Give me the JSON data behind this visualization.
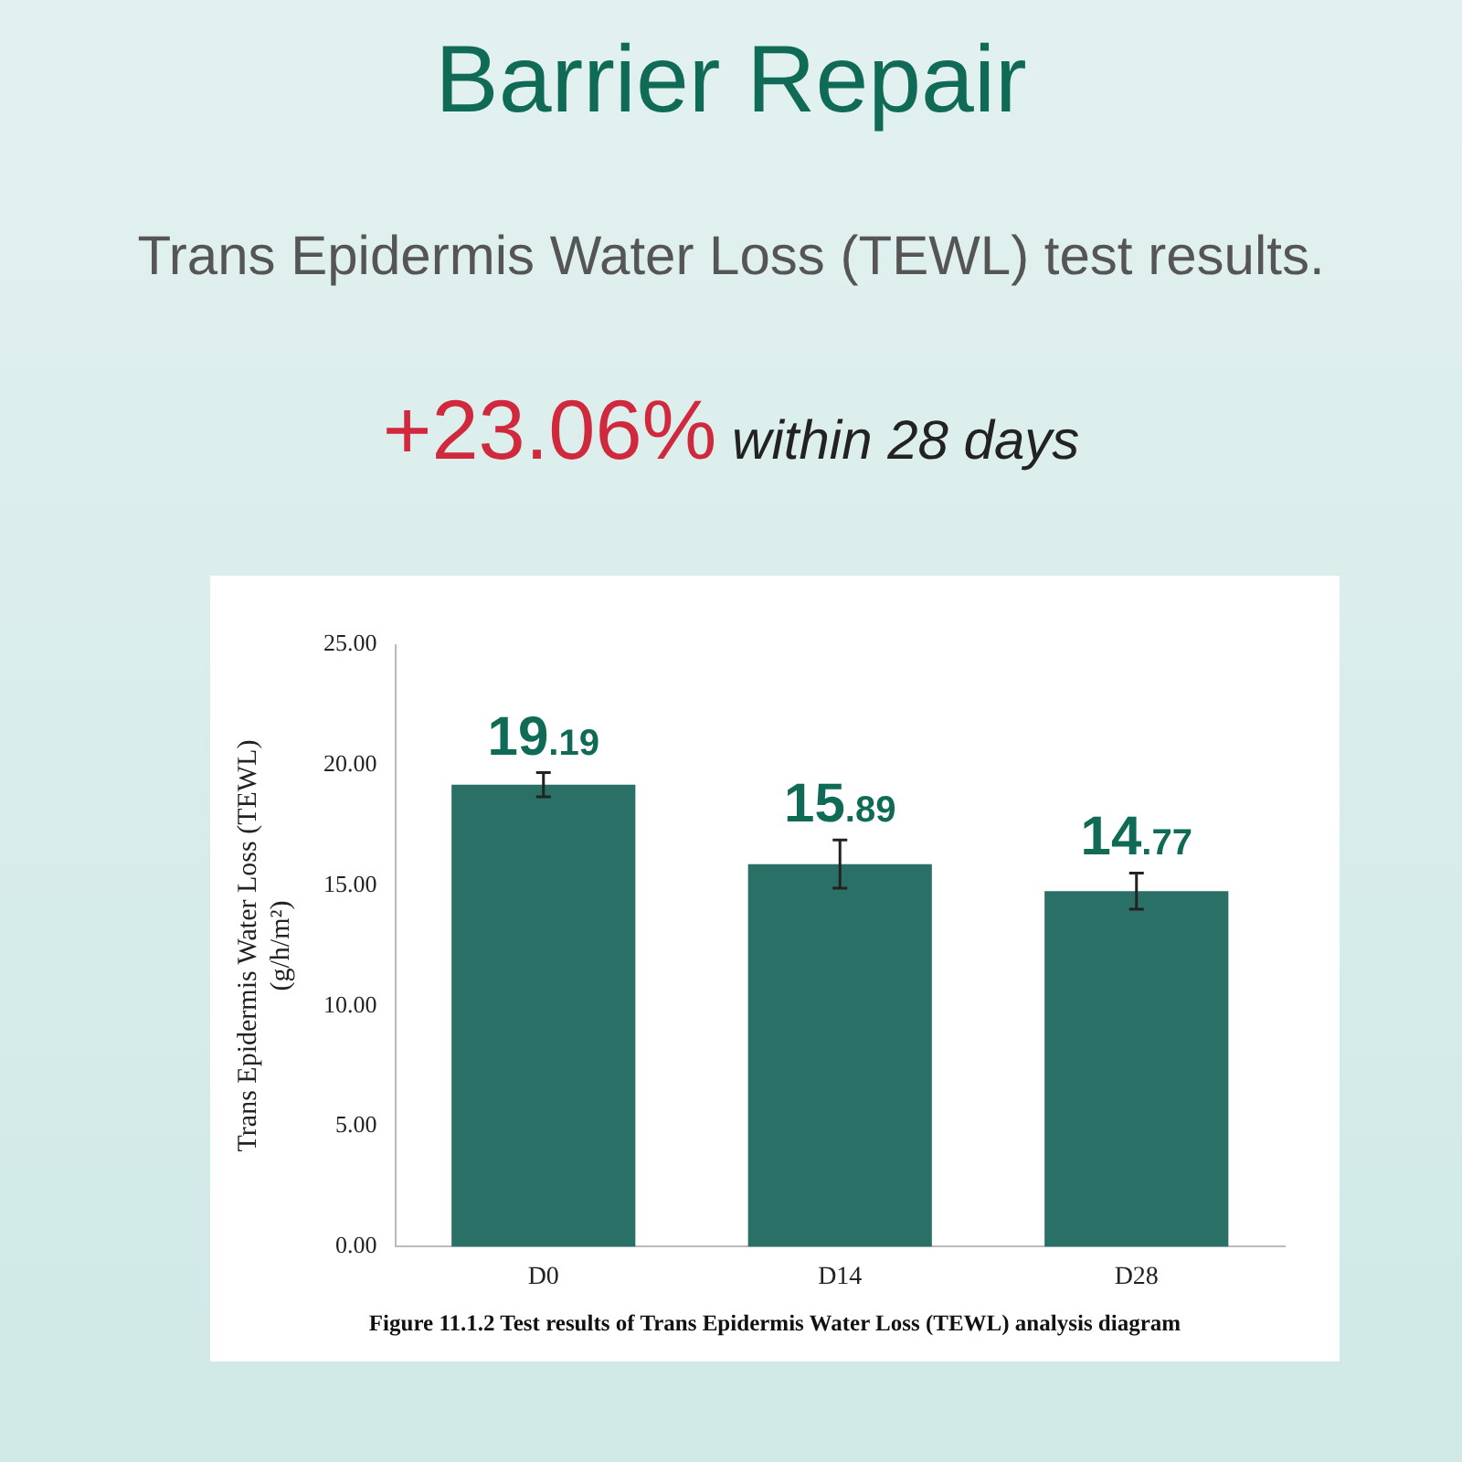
{
  "chart_data": {
    "type": "bar",
    "title": "Barrier Repair",
    "subtitle": "Trans Epidermis Water Loss (TEWL) test results.",
    "ylabel": "Trans Epidermis Water Loss (TEWL)\n(g/h/m²)",
    "categories": [
      "D0",
      "D14",
      "D28"
    ],
    "values": [
      19.19,
      15.89,
      14.77
    ],
    "errors": [
      0.5,
      1.0,
      0.75
    ],
    "color": "#2b7066",
    "ylim": [
      0,
      25
    ],
    "yticks": [
      {
        "value": 0,
        "label": "0.00"
      },
      {
        "value": 5,
        "label": "5.00"
      },
      {
        "value": 10,
        "label": "10.00"
      },
      {
        "value": 15,
        "label": "15.00"
      },
      {
        "value": 20,
        "label": "20.00"
      },
      {
        "value": 25,
        "label": "25.00"
      }
    ],
    "grid": false,
    "data_labels": true,
    "annotations": [
      "+23.06% within 28 days",
      "Figure 11.1.2 Test results of Trans Epidermis Water Loss (TEWL) analysis diagram"
    ]
  }
}
